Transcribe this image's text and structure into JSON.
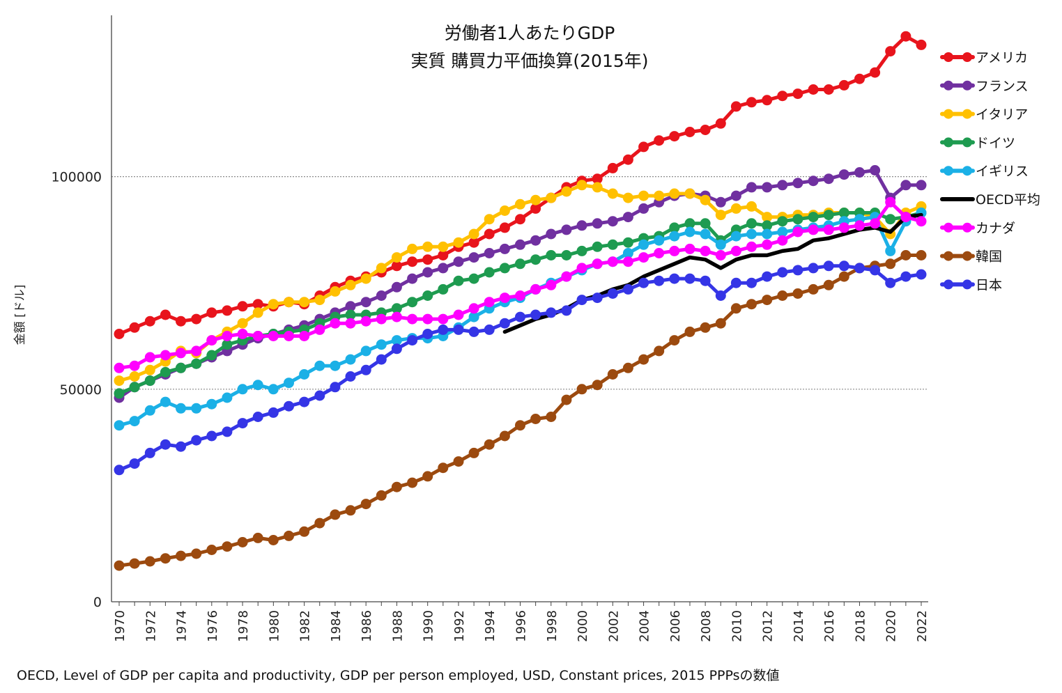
{
  "chart_data": {
    "type": "line",
    "title": "労働者1人あたりGDP",
    "subtitle": "実質 購買力平価換算(2015年)",
    "ylabel": "金額 [ドル]",
    "xlabel": "",
    "source_note": "OECD, Level of GDP per capita and productivity, GDP per person employed, USD, Constant prices, 2015 PPPsの数値",
    "ylim": [
      0,
      135000
    ],
    "yticks": [
      0,
      50000,
      100000
    ],
    "ytick_labels": [
      "0",
      "50000",
      "100000"
    ],
    "grid": "horizontal dotted at 50000 and 100000",
    "legend_position": "right",
    "x": [
      1970,
      1971,
      1972,
      1973,
      1974,
      1975,
      1976,
      1977,
      1978,
      1979,
      1980,
      1981,
      1982,
      1983,
      1984,
      1985,
      1986,
      1987,
      1988,
      1989,
      1990,
      1991,
      1992,
      1993,
      1994,
      1995,
      1996,
      1997,
      1998,
      1999,
      2000,
      2001,
      2002,
      2003,
      2004,
      2005,
      2006,
      2007,
      2008,
      2009,
      2010,
      2011,
      2012,
      2013,
      2014,
      2015,
      2016,
      2017,
      2018,
      2019,
      2020,
      2021,
      2022
    ],
    "xtick_labels": [
      "1970",
      "1972",
      "1974",
      "1976",
      "1978",
      "1980",
      "1982",
      "1984",
      "1986",
      "1988",
      "1990",
      "1992",
      "1994",
      "1996",
      "1998",
      "2000",
      "2002",
      "2004",
      "2006",
      "2008",
      "2010",
      "2012",
      "2014",
      "2016",
      "2018",
      "2020",
      "2022"
    ],
    "series": [
      {
        "name": "アメリカ",
        "color": "#e8141c",
        "marker": true,
        "values": [
          63000,
          64500,
          66000,
          67500,
          66000,
          66500,
          68000,
          68500,
          69500,
          70000,
          69500,
          70500,
          70000,
          72000,
          74000,
          75500,
          76500,
          77500,
          79000,
          80000,
          80500,
          81500,
          83500,
          84500,
          86500,
          88000,
          90000,
          92500,
          95000,
          97500,
          99000,
          99500,
          102000,
          104000,
          107000,
          108500,
          109500,
          110500,
          111000,
          112500,
          116500,
          117500,
          118000,
          119000,
          119500,
          120500,
          120500,
          121500,
          123000,
          124500,
          129500,
          133000,
          131000
        ]
      },
      {
        "name": "フランス",
        "color": "#7030a0",
        "marker": true,
        "values": [
          48000,
          50500,
          52000,
          53500,
          55000,
          56000,
          57500,
          59000,
          60500,
          62000,
          63000,
          64000,
          65000,
          66500,
          68000,
          69500,
          70500,
          72000,
          74000,
          76000,
          77500,
          78500,
          80000,
          81000,
          82000,
          83000,
          84000,
          85000,
          86500,
          87500,
          88500,
          89000,
          89500,
          90500,
          92500,
          94000,
          95500,
          96000,
          95500,
          94000,
          95500,
          97500,
          97500,
          98000,
          98500,
          99000,
          99500,
          100500,
          101000,
          101500,
          95000,
          98000,
          98000
        ]
      },
      {
        "name": "イタリア",
        "color": "#ffc000",
        "marker": true,
        "values": [
          52000,
          53000,
          54500,
          56500,
          59000,
          58500,
          61500,
          63500,
          65500,
          68000,
          70000,
          70500,
          70500,
          71000,
          73000,
          74500,
          76000,
          78500,
          81000,
          83000,
          83500,
          83500,
          84500,
          86500,
          90000,
          92000,
          93500,
          94500,
          95000,
          96500,
          98000,
          97500,
          96000,
          95000,
          95500,
          95500,
          96000,
          96000,
          94500,
          91000,
          92500,
          93000,
          90500,
          90500,
          91000,
          91000,
          91500,
          91500,
          91500,
          90500,
          86500,
          91500,
          93000
        ]
      },
      {
        "name": "ドイツ",
        "color": "#1e9b50",
        "marker": true,
        "values": [
          49000,
          50500,
          52000,
          54000,
          55000,
          56000,
          58000,
          60500,
          61500,
          62500,
          63000,
          63500,
          64000,
          65500,
          67000,
          67500,
          67500,
          68000,
          69000,
          70500,
          72000,
          73500,
          75500,
          76000,
          77500,
          78500,
          79500,
          80500,
          81500,
          81500,
          82500,
          83500,
          84000,
          84500,
          85500,
          86000,
          88000,
          89000,
          89000,
          85000,
          87500,
          89000,
          88500,
          89500,
          90000,
          90500,
          91000,
          91500,
          91500,
          91500,
          90000,
          90500,
          91500
        ]
      },
      {
        "name": "イギリス",
        "color": "#1bb0e6",
        "marker": true,
        "values": [
          41500,
          42500,
          45000,
          47000,
          45500,
          45500,
          46500,
          48000,
          50000,
          51000,
          50000,
          51500,
          53500,
          55500,
          55500,
          57000,
          59000,
          60500,
          61500,
          62000,
          62000,
          62500,
          64500,
          67000,
          69000,
          70500,
          71500,
          73500,
          75000,
          76500,
          78000,
          79500,
          80000,
          82000,
          84000,
          85000,
          86000,
          87000,
          86500,
          84000,
          86000,
          86500,
          86500,
          87000,
          87500,
          88000,
          88500,
          89500,
          90000,
          90500,
          82500,
          89500,
          91500
        ]
      },
      {
        "name": "OECD平均",
        "color": "#000000",
        "marker": false,
        "values": [
          null,
          null,
          null,
          null,
          null,
          null,
          null,
          null,
          null,
          null,
          null,
          null,
          null,
          null,
          null,
          null,
          null,
          null,
          null,
          null,
          null,
          null,
          null,
          null,
          null,
          63500,
          65000,
          66500,
          67500,
          69000,
          71000,
          72000,
          73500,
          74500,
          76500,
          78000,
          79500,
          81000,
          80500,
          78500,
          80500,
          81500,
          81500,
          82500,
          83000,
          85000,
          85500,
          86500,
          87500,
          88000,
          87000,
          90500,
          91000
        ]
      },
      {
        "name": "カナダ",
        "color": "#ff00ff",
        "marker": true,
        "values": [
          55000,
          55500,
          57500,
          58000,
          58500,
          59000,
          61500,
          62500,
          63000,
          62500,
          62500,
          62500,
          62500,
          64000,
          65500,
          65500,
          66000,
          66500,
          67000,
          66500,
          66500,
          66500,
          67500,
          69000,
          70500,
          71500,
          72000,
          73500,
          74500,
          76500,
          78500,
          79500,
          80000,
          80000,
          81000,
          82000,
          82500,
          83000,
          82500,
          81500,
          82500,
          83500,
          84000,
          85000,
          87000,
          87500,
          87500,
          88000,
          88500,
          89000,
          94000,
          90500,
          89500
        ]
      },
      {
        "name": "韓国",
        "color": "#9c4a0f",
        "marker": true,
        "values": [
          8500,
          9000,
          9500,
          10200,
          10800,
          11300,
          12200,
          13000,
          14000,
          15000,
          14500,
          15500,
          16500,
          18500,
          20500,
          21500,
          23000,
          25000,
          27000,
          28000,
          29500,
          31500,
          33000,
          35000,
          37000,
          39000,
          41500,
          43000,
          43500,
          47500,
          50000,
          51000,
          53500,
          55000,
          57000,
          59000,
          61500,
          63500,
          64500,
          65500,
          69000,
          70000,
          71000,
          72000,
          72500,
          73500,
          74500,
          76500,
          78500,
          79000,
          79500,
          81500,
          81500
        ]
      },
      {
        "name": "日本",
        "color": "#3535e6",
        "marker": true,
        "values": [
          31000,
          32500,
          35000,
          37000,
          36500,
          38000,
          39000,
          40000,
          42000,
          43500,
          44500,
          46000,
          47000,
          48500,
          50500,
          53000,
          54500,
          57000,
          59500,
          61500,
          63000,
          64000,
          64000,
          63500,
          64000,
          65500,
          67000,
          67500,
          68000,
          68500,
          71000,
          71500,
          72500,
          73500,
          75000,
          75500,
          76000,
          76000,
          75500,
          72000,
          75000,
          75000,
          76500,
          77500,
          78000,
          78500,
          79000,
          79000,
          78500,
          78000,
          75000,
          76500,
          77000
        ]
      }
    ]
  }
}
